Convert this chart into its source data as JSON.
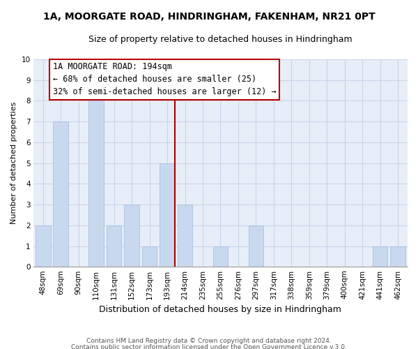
{
  "title": "1A, MOORGATE ROAD, HINDRINGHAM, FAKENHAM, NR21 0PT",
  "subtitle": "Size of property relative to detached houses in Hindringham",
  "xlabel": "Distribution of detached houses by size in Hindringham",
  "ylabel": "Number of detached properties",
  "bar_labels": [
    "48sqm",
    "69sqm",
    "90sqm",
    "110sqm",
    "131sqm",
    "152sqm",
    "173sqm",
    "193sqm",
    "214sqm",
    "235sqm",
    "255sqm",
    "276sqm",
    "297sqm",
    "317sqm",
    "338sqm",
    "359sqm",
    "379sqm",
    "400sqm",
    "421sqm",
    "441sqm",
    "462sqm"
  ],
  "bar_values": [
    2,
    7,
    0,
    8,
    2,
    3,
    1,
    5,
    3,
    0,
    1,
    0,
    2,
    0,
    0,
    0,
    0,
    0,
    0,
    1,
    1
  ],
  "bar_color": "#c8d8ee",
  "bar_edge_color": "#a8c0e0",
  "marker_line_index": 7,
  "marker_line_color": "#aa0000",
  "ylim": [
    0,
    10
  ],
  "yticks": [
    0,
    1,
    2,
    3,
    4,
    5,
    6,
    7,
    8,
    9,
    10
  ],
  "annotation_text_line0": "1A MOORGATE ROAD: 194sqm",
  "annotation_text_line1": "← 68% of detached houses are smaller (25)",
  "annotation_text_line2": "32% of semi-detached houses are larger (12) →",
  "footer1": "Contains HM Land Registry data © Crown copyright and database right 2024.",
  "footer2": "Contains public sector information licensed under the Open Government Licence v.3.0.",
  "plot_bg_color": "#e8eef8",
  "fig_bg_color": "#ffffff",
  "grid_color": "#c8d4e8",
  "annotation_box_color": "#ffffff",
  "annotation_border_color": "#bb0000",
  "title_fontsize": 10,
  "subtitle_fontsize": 9,
  "ylabel_fontsize": 8,
  "xlabel_fontsize": 9,
  "tick_fontsize": 7.5,
  "footer_fontsize": 6.5,
  "annotation_fontsize": 8.5
}
